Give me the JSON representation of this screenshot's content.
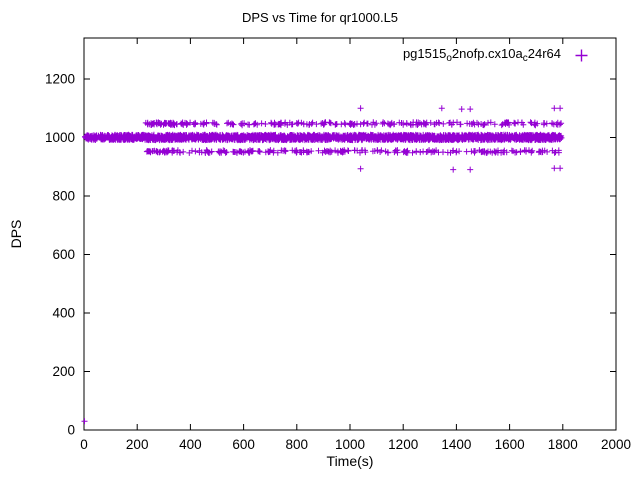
{
  "window": {
    "title": "DPS vs Time for qr1000.L5"
  },
  "chart_data": {
    "type": "scatter",
    "title": "DPS vs Time for qr1000.L5",
    "xlabel": "Time(s)",
    "ylabel": "DPS",
    "xlim": [
      0,
      2000
    ],
    "ylim": [
      0,
      1340
    ],
    "xticks": [
      0,
      200,
      400,
      600,
      800,
      1000,
      1200,
      1400,
      1600,
      1800,
      2000
    ],
    "yticks": [
      0,
      200,
      400,
      600,
      800,
      1000,
      1200
    ],
    "grid": false,
    "marker": "plus",
    "color": "#9400D3",
    "axis_color": "#000000",
    "legend": {
      "position": "top-right",
      "label": "pg1515_o2nofp.cx10a_c24r64",
      "parts": [
        {
          "text": "pg1515"
        },
        {
          "text": "o",
          "sub": true
        },
        {
          "text": "2nofp.cx10a"
        },
        {
          "text": "c",
          "sub": true
        },
        {
          "text": "24r64"
        }
      ]
    },
    "series": [
      {
        "name": "pg1515_o2nofp.cx10a_c24r64",
        "bands": [
          {
            "x": [
              2,
              1795
            ],
            "y": 1000,
            "spread": 9,
            "count": 2400
          },
          {
            "x": [
              230,
              1800
            ],
            "y": 1047,
            "spread": 5,
            "count": 230
          },
          {
            "x": [
              230,
              1800
            ],
            "y": 952,
            "spread": 5,
            "count": 230
          },
          {
            "x": [
              236,
              340
            ],
            "y": 1047,
            "spread": 4,
            "count": 30
          },
          {
            "x": [
              236,
              340
            ],
            "y": 952,
            "spread": 4,
            "count": 25
          }
        ],
        "outliers": [
          [
            2,
            30
          ],
          [
            1040,
            1100
          ],
          [
            1345,
            1100
          ],
          [
            1420,
            1097
          ],
          [
            1452,
            1097
          ],
          [
            1768,
            1100
          ],
          [
            1790,
            1100
          ],
          [
            1040,
            893
          ],
          [
            1388,
            890
          ],
          [
            1452,
            890
          ],
          [
            1768,
            895
          ],
          [
            1790,
            895
          ]
        ]
      }
    ]
  }
}
